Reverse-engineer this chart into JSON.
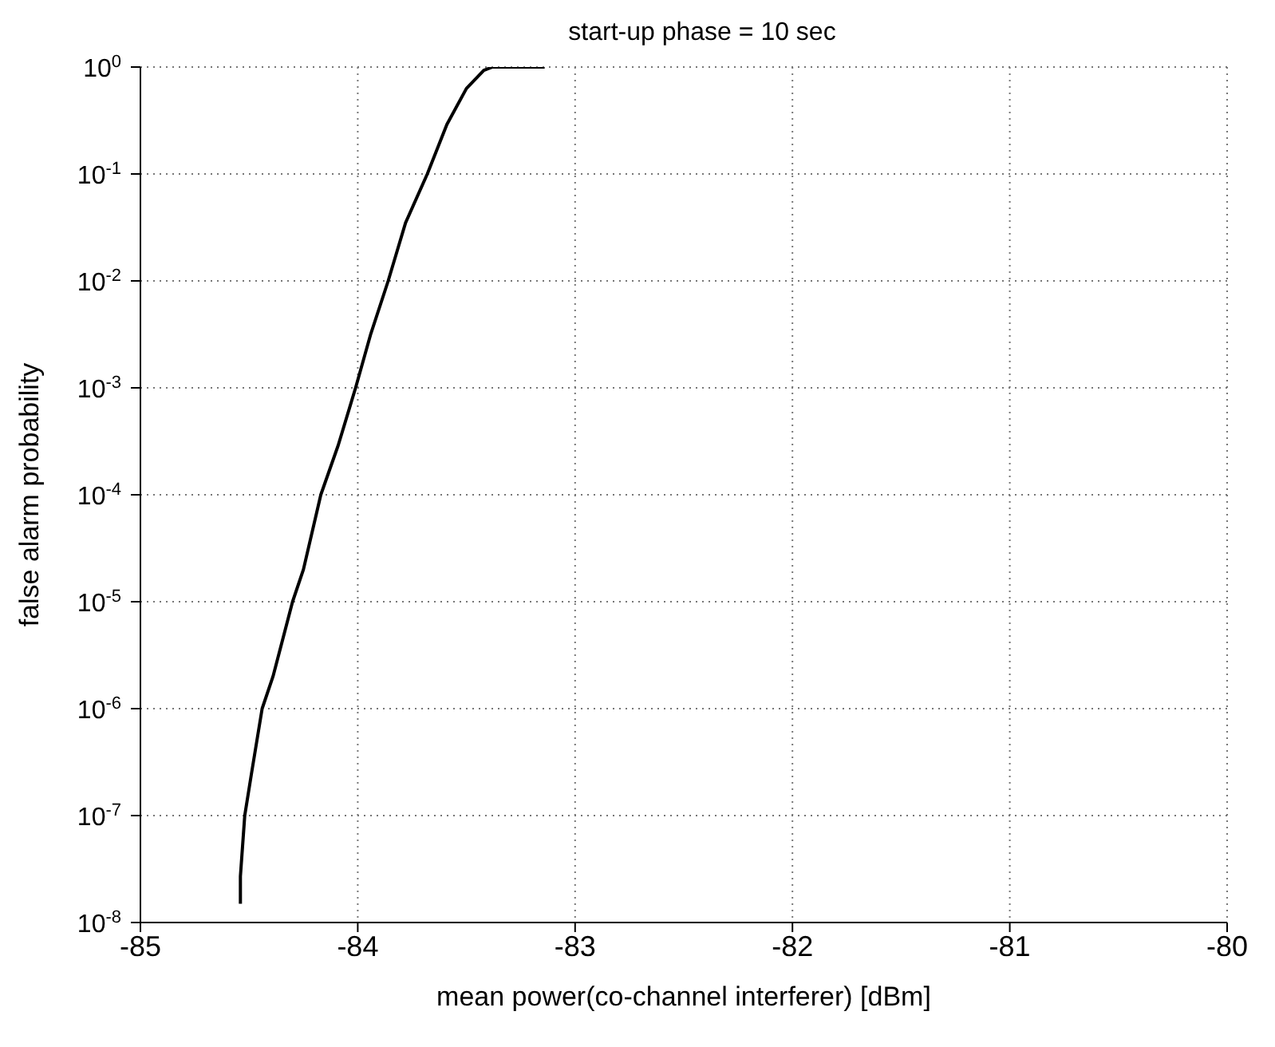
{
  "chart_data": {
    "type": "line",
    "title": "start-up phase = 10 sec",
    "xlabel": "mean power(co-channel interferer) [dBm]",
    "ylabel": "false alarm probability",
    "log": "y",
    "grid": true,
    "marker": "none",
    "line_style": "solid",
    "legend": false,
    "xlim": [
      -85,
      -80
    ],
    "xticks": [
      -85,
      -84,
      -83,
      -82,
      -81,
      -80
    ],
    "ylim": [
      1e-08,
      1
    ],
    "yticks": [
      {
        "value": 1e-08,
        "label": "10$^{-8}$"
      },
      {
        "value": 1e-07,
        "label": "10$^{-7}$"
      },
      {
        "value": 1e-06,
        "label": "10$^{-6}$"
      },
      {
        "value": 1e-05,
        "label": "10$^{-5}$"
      },
      {
        "value": 0.0001,
        "label": "10$^{-4}$"
      },
      {
        "value": 0.001,
        "label": "10$^{-3}$"
      },
      {
        "value": 0.01,
        "label": "10$^{-2}$"
      },
      {
        "value": 0.1,
        "label": "10$^{-1}$"
      },
      {
        "value": 1,
        "label": "10$^{0}$"
      }
    ],
    "x": [
      -84.54,
      -84.54,
      -84.52,
      -84.49,
      -84.44,
      -84.39,
      -84.3,
      -84.25,
      -84.17,
      -84.09,
      -84.01,
      -83.94,
      -83.86,
      -83.78,
      -83.68,
      -83.59,
      -83.5,
      -83.42,
      -83.38,
      -83.14
    ],
    "series": [
      {
        "color": "#000000",
        "values": [
          1.5e-08,
          2.7e-08,
          1e-07,
          2.4e-07,
          1e-06,
          2e-06,
          1e-05,
          2e-05,
          0.0001,
          0.00029,
          0.001,
          0.0032,
          0.01,
          0.035,
          0.1,
          0.29,
          0.63,
          0.93,
          1,
          1
        ]
      }
    ]
  }
}
